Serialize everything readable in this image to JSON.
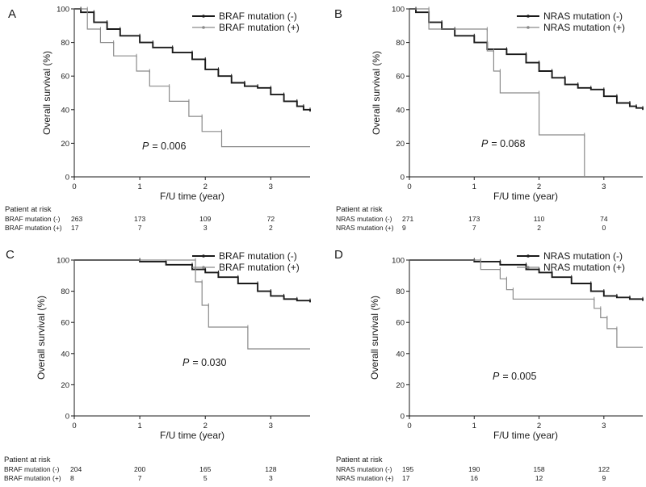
{
  "chart_data": [
    {
      "panel": "A",
      "type": "line",
      "ylabel": "Overall survival (%)",
      "xlabel": "F/U time (year)",
      "xlim": [
        0,
        3.6
      ],
      "ylim": [
        0,
        100
      ],
      "xticks": [
        0,
        1,
        2,
        3
      ],
      "yticks": [
        0,
        20,
        40,
        60,
        80,
        100
      ],
      "legend_position": "top-right",
      "p_value": "= 0.006",
      "series": [
        {
          "name": "BRAF mutation (-)",
          "color": "#1a1a1a",
          "x": [
            0,
            0.1,
            0.3,
            0.5,
            0.7,
            1.0,
            1.2,
            1.5,
            1.8,
            2.0,
            2.2,
            2.4,
            2.6,
            2.8,
            3.0,
            3.2,
            3.4,
            3.5,
            3.6
          ],
          "y": [
            100,
            98,
            92,
            88,
            84,
            80,
            77,
            74,
            70,
            64,
            60,
            56,
            54,
            53,
            49,
            45,
            42,
            40,
            39
          ]
        },
        {
          "name": "BRAF mutation (+)",
          "color": "#8a8a8a",
          "x": [
            0,
            0.2,
            0.4,
            0.6,
            0.95,
            1.15,
            1.45,
            1.75,
            1.95,
            2.25,
            3.6
          ],
          "y": [
            100,
            88,
            80,
            72,
            63,
            54,
            45,
            36,
            27,
            18,
            18
          ]
        }
      ],
      "risk_table": {
        "title": "Patient at risk",
        "rows": [
          {
            "label": "BRAF mutation (-)",
            "counts": [
              "263",
              "173",
              "109",
              "72"
            ]
          },
          {
            "label": "BRAF mutation (+)",
            "counts": [
              "17",
              "7",
              "3",
              "2"
            ]
          }
        ]
      }
    },
    {
      "panel": "B",
      "type": "line",
      "ylabel": "Overall survival (%)",
      "xlabel": "F/U time (year)",
      "xlim": [
        0,
        3.6
      ],
      "ylim": [
        0,
        100
      ],
      "xticks": [
        0,
        1,
        2,
        3
      ],
      "yticks": [
        0,
        20,
        40,
        60,
        80,
        100
      ],
      "legend_position": "top-right",
      "p_value": "= 0.068",
      "series": [
        {
          "name": "NRAS mutation (-)",
          "color": "#1a1a1a",
          "x": [
            0,
            0.1,
            0.3,
            0.5,
            0.7,
            1.0,
            1.2,
            1.5,
            1.8,
            2.0,
            2.2,
            2.4,
            2.6,
            2.8,
            3.0,
            3.2,
            3.4,
            3.5,
            3.6
          ],
          "y": [
            100,
            98,
            92,
            88,
            84,
            80,
            76,
            73,
            68,
            63,
            59,
            55,
            53,
            52,
            48,
            44,
            42,
            41,
            40
          ]
        },
        {
          "name": "NRAS mutation (+)",
          "color": "#8a8a8a",
          "x": [
            0,
            0.3,
            1.2,
            1.3,
            1.4,
            2.0,
            2.7
          ],
          "y": [
            100,
            88,
            75,
            63,
            50,
            25,
            0
          ]
        }
      ],
      "risk_table": {
        "title": "Patient at risk",
        "rows": [
          {
            "label": "NRAS mutation (-)",
            "counts": [
              "271",
              "173",
              "110",
              "74"
            ]
          },
          {
            "label": "NRAS mutation (+)",
            "counts": [
              "9",
              "7",
              "2",
              "0"
            ]
          }
        ]
      }
    },
    {
      "panel": "C",
      "type": "line",
      "ylabel": "Overall survival (%)",
      "xlabel": "F/U time (year)",
      "xlim": [
        0,
        3.6
      ],
      "ylim": [
        0,
        100
      ],
      "xticks": [
        0,
        1,
        2,
        3
      ],
      "yticks": [
        0,
        20,
        40,
        60,
        80,
        100
      ],
      "legend_position": "top-right",
      "p_value": "= 0.030",
      "series": [
        {
          "name": "BRAF mutation (-)",
          "color": "#1a1a1a",
          "x": [
            0,
            0.6,
            1.0,
            1.4,
            1.8,
            2.0,
            2.2,
            2.5,
            2.8,
            3.0,
            3.2,
            3.4,
            3.6
          ],
          "y": [
            100,
            100,
            99,
            97,
            94,
            92,
            89,
            85,
            80,
            77,
            75,
            74,
            73
          ]
        },
        {
          "name": "BRAF mutation (+)",
          "color": "#8a8a8a",
          "x": [
            0,
            1.85,
            1.95,
            2.05,
            2.65,
            3.6
          ],
          "y": [
            100,
            86,
            71,
            57,
            43,
            43
          ]
        }
      ],
      "risk_table": {
        "title": "Patient at risk",
        "rows": [
          {
            "label": "BRAF mutation (-)",
            "counts": [
              "204",
              "200",
              "165",
              "128"
            ]
          },
          {
            "label": "BRAF mutation (+)",
            "counts": [
              "8",
              "7",
              "5",
              "3"
            ]
          }
        ]
      }
    },
    {
      "panel": "D",
      "type": "line",
      "ylabel": "Overall survival (%)",
      "xlabel": "F/U time (year)",
      "xlim": [
        0,
        3.6
      ],
      "ylim": [
        0,
        100
      ],
      "xticks": [
        0,
        1,
        2,
        3
      ],
      "yticks": [
        0,
        20,
        40,
        60,
        80,
        100
      ],
      "legend_position": "top-right",
      "p_value": "= 0.005",
      "series": [
        {
          "name": "NRAS mutation (-)",
          "color": "#1a1a1a",
          "x": [
            0,
            0.6,
            1.0,
            1.4,
            1.8,
            2.0,
            2.2,
            2.5,
            2.8,
            3.0,
            3.2,
            3.4,
            3.6
          ],
          "y": [
            100,
            100,
            99,
            97,
            94,
            92,
            89,
            85,
            80,
            77,
            76,
            75,
            74
          ]
        },
        {
          "name": "NRAS mutation (+)",
          "color": "#8a8a8a",
          "x": [
            0,
            1.1,
            1.4,
            1.5,
            1.6,
            2.8,
            2.85,
            2.95,
            3.05,
            3.2,
            3.6
          ],
          "y": [
            100,
            94,
            88,
            81,
            75,
            75,
            69,
            63,
            56,
            44,
            44
          ]
        }
      ],
      "risk_table": {
        "title": "Patient at risk",
        "rows": [
          {
            "label": "NRAS mutation (-)",
            "counts": [
              "195",
              "190",
              "158",
              "122"
            ]
          },
          {
            "label": "NRAS mutation (+)",
            "counts": [
              "17",
              "16",
              "12",
              "9"
            ]
          }
        ]
      }
    }
  ]
}
